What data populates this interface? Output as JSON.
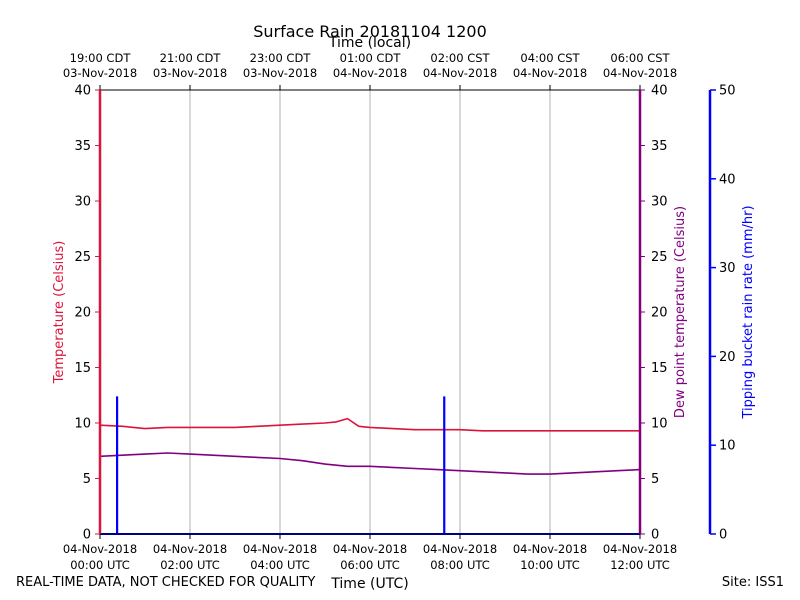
{
  "chart_data": {
    "type": "line",
    "title": "Surface Rain 20181104 1200",
    "top_axis_title": "Time (local)",
    "bottom_axis_title": "Time (UTC)",
    "x_range_hours": [
      0,
      12
    ],
    "bottom_ticks": [
      {
        "h": 0,
        "line1": "04-Nov-2018",
        "line2": "00:00 UTC"
      },
      {
        "h": 2,
        "line1": "04-Nov-2018",
        "line2": "02:00 UTC"
      },
      {
        "h": 4,
        "line1": "04-Nov-2018",
        "line2": "04:00 UTC"
      },
      {
        "h": 6,
        "line1": "04-Nov-2018",
        "line2": "06:00 UTC"
      },
      {
        "h": 8,
        "line1": "04-Nov-2018",
        "line2": "08:00 UTC"
      },
      {
        "h": 10,
        "line1": "04-Nov-2018",
        "line2": "10:00 UTC"
      },
      {
        "h": 12,
        "line1": "04-Nov-2018",
        "line2": "12:00 UTC"
      }
    ],
    "top_ticks": [
      {
        "h": 0,
        "line1": "19:00 CDT",
        "line2": "03-Nov-2018"
      },
      {
        "h": 2,
        "line1": "21:00 CDT",
        "line2": "03-Nov-2018"
      },
      {
        "h": 4,
        "line1": "23:00 CDT",
        "line2": "03-Nov-2018"
      },
      {
        "h": 6,
        "line1": "01:00 CDT",
        "line2": "04-Nov-2018"
      },
      {
        "h": 8,
        "line1": "02:00 CST",
        "line2": "04-Nov-2018"
      },
      {
        "h": 10,
        "line1": "04:00 CST",
        "line2": "04-Nov-2018"
      },
      {
        "h": 12,
        "line1": "06:00 CST",
        "line2": "04-Nov-2018"
      }
    ],
    "left_axis": {
      "label": "Temperature (Celsius)",
      "range": [
        0,
        40
      ],
      "ticks": [
        0,
        5,
        10,
        15,
        20,
        25,
        30,
        35,
        40
      ],
      "color": "#dc143c"
    },
    "right_axis": {
      "label": "Dew point temperature (Celsius)",
      "range": [
        0,
        40
      ],
      "ticks": [
        0,
        5,
        10,
        15,
        20,
        25,
        30,
        35,
        40
      ],
      "color": "#800080"
    },
    "far_right_axis": {
      "label": "Tipping bucket rain rate (mm/hr)",
      "range": [
        0,
        50
      ],
      "ticks": [
        0,
        10,
        20,
        30,
        40,
        50
      ],
      "color": "#0000ff"
    },
    "series": [
      {
        "name": "Temperature",
        "color": "#dc143c",
        "x": [
          0,
          0.5,
          1,
          1.5,
          2,
          2.5,
          3,
          3.5,
          4,
          4.5,
          5,
          5.25,
          5.5,
          5.75,
          6,
          6.5,
          7,
          7.5,
          8,
          8.5,
          9,
          9.5,
          10,
          10.5,
          11,
          11.5,
          12
        ],
        "y": [
          9.8,
          9.7,
          9.5,
          9.6,
          9.6,
          9.6,
          9.6,
          9.7,
          9.8,
          9.9,
          10.0,
          10.1,
          10.4,
          9.7,
          9.6,
          9.5,
          9.4,
          9.4,
          9.4,
          9.3,
          9.3,
          9.3,
          9.3,
          9.3,
          9.3,
          9.3,
          9.3
        ]
      },
      {
        "name": "Dew point temperature",
        "color": "#800080",
        "x": [
          0,
          0.5,
          1,
          1.5,
          2,
          2.5,
          3,
          3.5,
          4,
          4.5,
          5,
          5.5,
          6,
          6.5,
          7,
          7.5,
          8,
          8.5,
          9,
          9.5,
          10,
          10.5,
          11,
          11.5,
          12
        ],
        "y": [
          7.0,
          7.1,
          7.2,
          7.3,
          7.2,
          7.1,
          7.0,
          6.9,
          6.8,
          6.6,
          6.3,
          6.1,
          6.1,
          6.0,
          5.9,
          5.8,
          5.7,
          5.6,
          5.5,
          5.4,
          5.4,
          5.5,
          5.6,
          5.7,
          5.8
        ]
      },
      {
        "name": "Tipping bucket rain rate",
        "color": "#0000ff",
        "x": [
          0.38,
          7.65
        ],
        "y": [
          15.5,
          15.5
        ]
      }
    ]
  },
  "footer": {
    "quality_note": "REAL-TIME DATA, NOT CHECKED FOR QUALITY",
    "site": "Site: ISS1"
  }
}
